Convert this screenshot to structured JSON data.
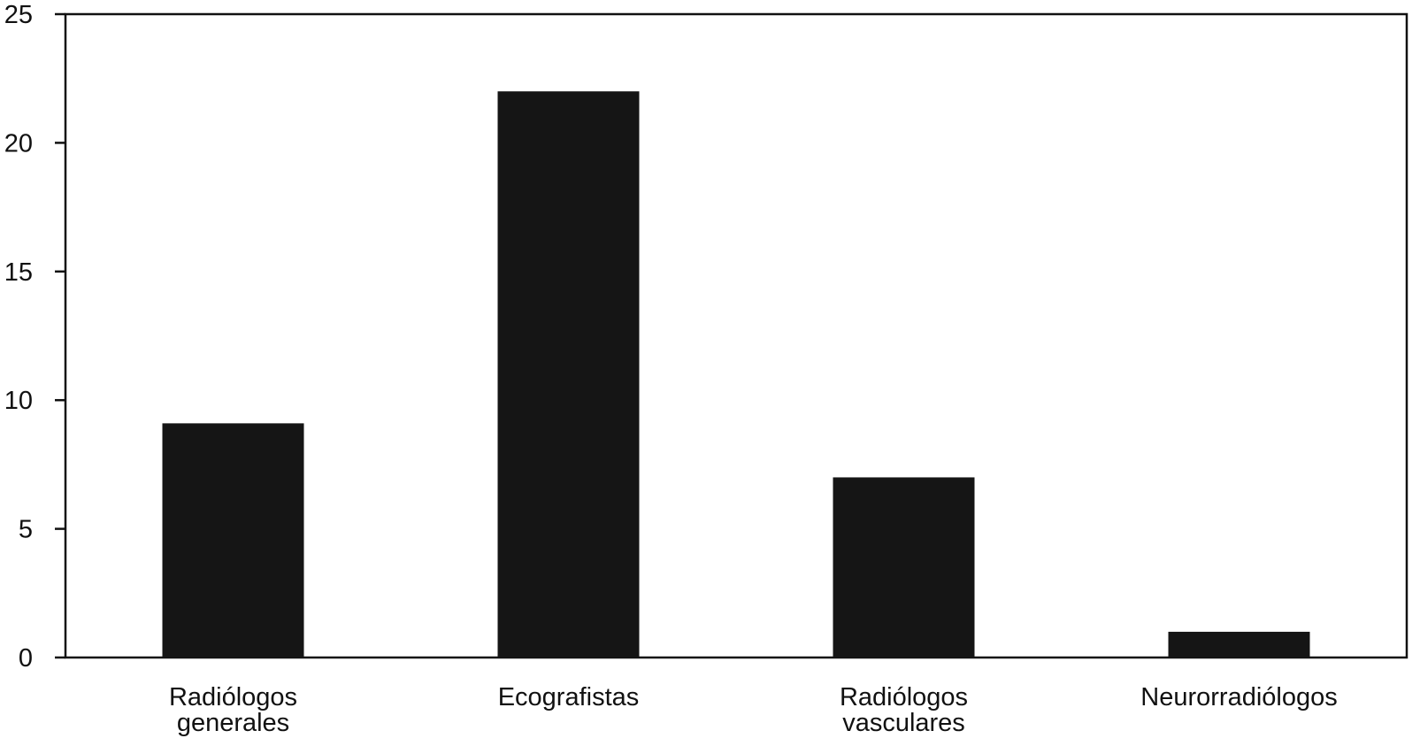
{
  "chart_data": {
    "type": "bar",
    "title": "",
    "xlabel": "",
    "ylabel": "",
    "categories": [
      [
        "Radiólogos",
        "generales"
      ],
      [
        "Ecografistas"
      ],
      [
        "Radiólogos",
        "vasculares"
      ],
      [
        "Neurorradiólogos"
      ]
    ],
    "values": [
      9.1,
      22,
      7,
      1
    ],
    "ylim": [
      0,
      25
    ],
    "yticks": [
      0,
      5,
      10,
      15,
      20,
      25
    ],
    "grid": false,
    "legend": "none",
    "bar_color": "#151515",
    "axis_color": "#111111"
  }
}
